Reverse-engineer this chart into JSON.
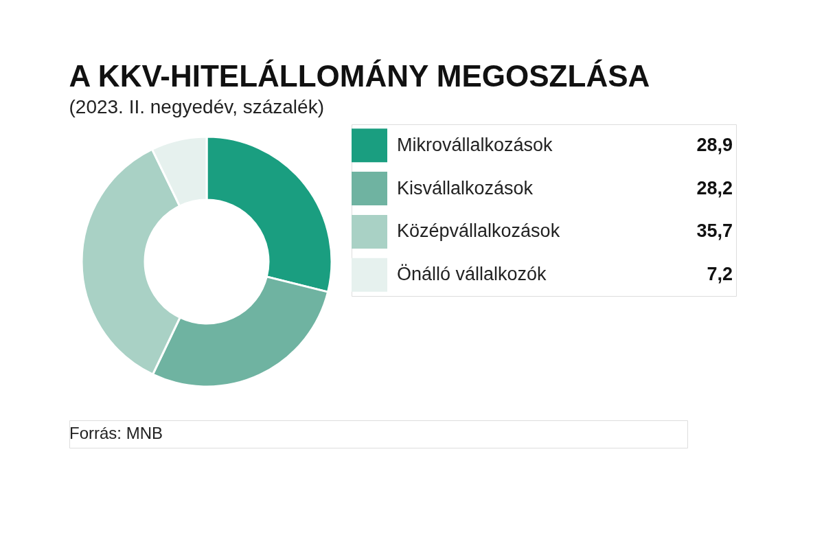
{
  "chart_data": {
    "type": "donut",
    "title": "A KKV-HITELÁLLOMÁNY MEGOSZLÁSA",
    "subtitle": "(2023. II. negyedév, százalék)",
    "categories": [
      "Mikrovállalkozások",
      "Kisvállalkozások",
      "Középvállalkozások",
      "Önálló vállalkozók"
    ],
    "values": [
      28.9,
      28.2,
      35.7,
      7.2
    ],
    "value_labels": [
      "28,9",
      "28,2",
      "35,7",
      "7,2"
    ],
    "colors": [
      "#1a9e80",
      "#6fb3a1",
      "#a9d1c5",
      "#e6f1ee"
    ],
    "legend": "right",
    "annotations": [
      "Forrás: MNB"
    ]
  }
}
